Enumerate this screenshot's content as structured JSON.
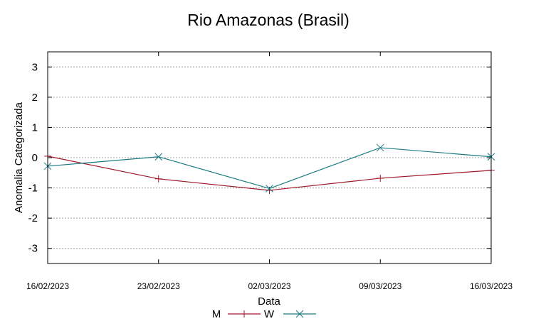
{
  "chart_data": {
    "type": "line",
    "title": "Rio Amazonas (Brasil)",
    "xlabel": "Data",
    "ylabel": "Anomalia Categorizada",
    "x": [
      "16/02/2023",
      "23/02/2023",
      "02/03/2023",
      "09/03/2023",
      "16/03/2023"
    ],
    "yticks": [
      "3",
      "2",
      "1",
      "0",
      "-1",
      "-2",
      "-3"
    ],
    "ylim": [
      -3.5,
      3.5
    ],
    "grid": true,
    "legend_placement": "bottom-center",
    "series": [
      {
        "name": "M",
        "color": "#a0192a",
        "marker": "plus",
        "values": [
          0.05,
          -0.7,
          -1.08,
          -0.68,
          -0.42
        ]
      },
      {
        "name": "W",
        "color": "#1a7a82",
        "marker": "cross",
        "values": [
          -0.28,
          0.03,
          -1.02,
          0.33,
          0.03
        ]
      }
    ]
  }
}
